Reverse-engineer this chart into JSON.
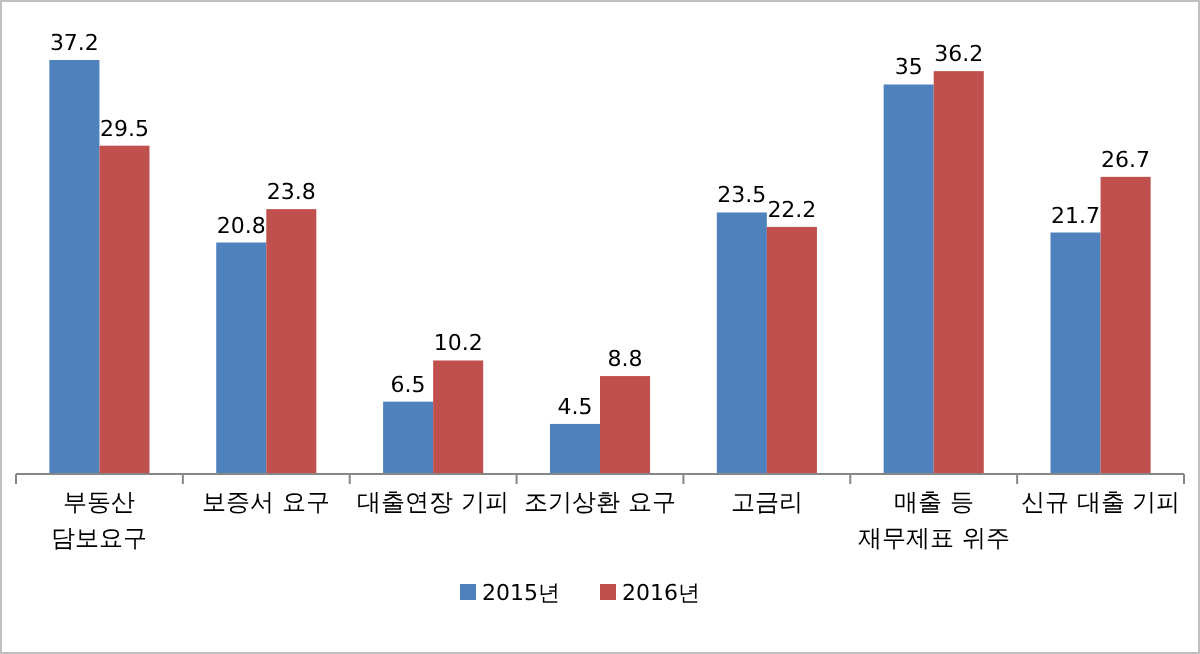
{
  "chart_data": {
    "type": "bar",
    "categories": [
      "부동산\n담보요구",
      "보증서 요구",
      "대출연장 기피",
      "조기상환 요구",
      "고금리",
      "매출 등\n재무제표 위주",
      "신규 대출 기피"
    ],
    "series": [
      {
        "name": "2015년",
        "color": "#4f81bd",
        "values": [
          37.2,
          20.8,
          6.5,
          4.5,
          23.5,
          35,
          21.7
        ]
      },
      {
        "name": "2016년",
        "color": "#c0504d",
        "values": [
          29.5,
          23.8,
          10.2,
          8.8,
          22.2,
          36.2,
          26.7
        ]
      }
    ],
    "data_labels": true,
    "legend": "bottom"
  }
}
